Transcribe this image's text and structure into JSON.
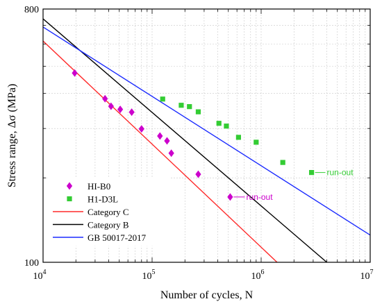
{
  "chart_data": {
    "type": "scatter",
    "xlabel": "Number of cycles, N",
    "ylabel": "Stress range, Δσ (MPa)",
    "x_scale": "log",
    "y_scale": "log",
    "xlim": [
      10000,
      10000000
    ],
    "ylim": [
      100,
      800
    ],
    "x_ticks": [
      {
        "value": 10000,
        "base": "10",
        "exp": "4"
      },
      {
        "value": 100000,
        "base": "10",
        "exp": "5"
      },
      {
        "value": 1000000,
        "base": "10",
        "exp": "6"
      },
      {
        "value": 10000000,
        "base": "10",
        "exp": "7"
      }
    ],
    "y_ticks": [
      {
        "value": 100,
        "label": "100"
      },
      {
        "value": 800,
        "label": "800"
      }
    ],
    "grid": true,
    "legend_position": "bottom-left",
    "series": [
      {
        "name": "HI-B0",
        "kind": "points",
        "marker": "diamond",
        "color": "#cc00cc",
        "points": [
          [
            19500,
            473
          ],
          [
            37000,
            383
          ],
          [
            42000,
            360
          ],
          [
            51000,
            351
          ],
          [
            65000,
            343
          ],
          [
            80000,
            299
          ],
          [
            118000,
            282
          ],
          [
            137000,
            271
          ],
          [
            150000,
            245
          ],
          [
            265000,
            206
          ],
          [
            520000,
            171
          ]
        ]
      },
      {
        "name": "H1-D3L",
        "kind": "points",
        "marker": "square",
        "color": "#33cc33",
        "points": [
          [
            125000,
            382
          ],
          [
            185000,
            363
          ],
          [
            220000,
            359
          ],
          [
            265000,
            344
          ],
          [
            410000,
            313
          ],
          [
            480000,
            306
          ],
          [
            620000,
            279
          ],
          [
            900000,
            268
          ],
          [
            1580000,
            227
          ],
          [
            2900000,
            209
          ]
        ]
      },
      {
        "name": "Category C",
        "kind": "line",
        "color": "#ff2a2a",
        "points": [
          [
            10000,
            615
          ],
          [
            1400000,
            100
          ]
        ]
      },
      {
        "name": "Category B",
        "kind": "line",
        "color": "#000000",
        "points": [
          [
            10000,
            738
          ],
          [
            4000000,
            100
          ]
        ]
      },
      {
        "name": "GB 50017-2017",
        "kind": "line",
        "color": "#1a2aff",
        "points": [
          [
            10000,
            690
          ],
          [
            10000000,
            125
          ]
        ]
      }
    ],
    "annotations": [
      {
        "text": "run-out",
        "color": "#33cc33",
        "target": [
          2900000,
          209
        ],
        "label_at": [
          4000000,
          209
        ]
      },
      {
        "text": "run-out",
        "color": "#cc00cc",
        "target": [
          520000,
          171
        ],
        "label_at": [
          730000,
          171
        ]
      }
    ]
  }
}
